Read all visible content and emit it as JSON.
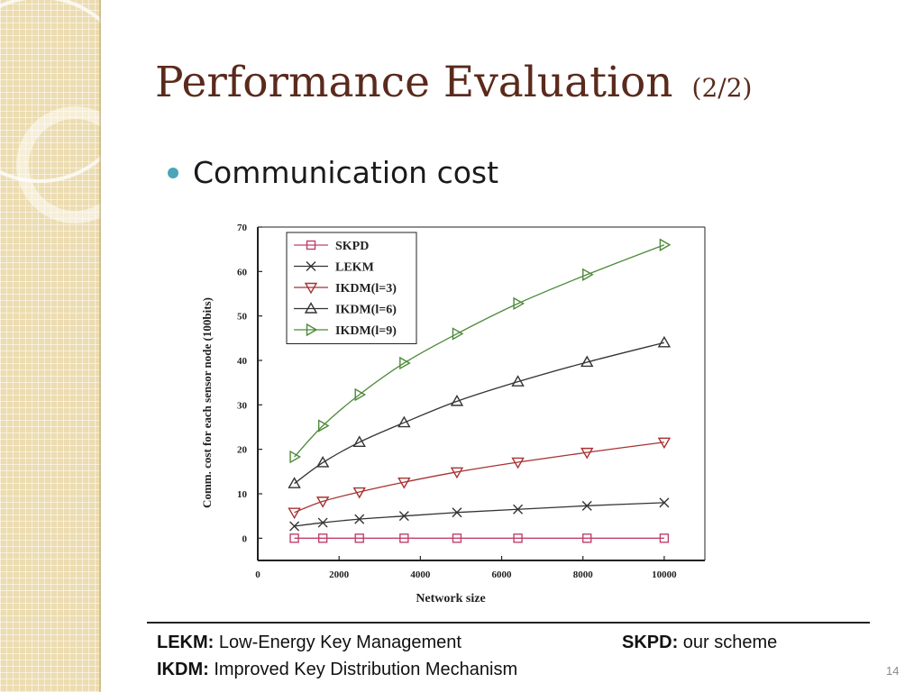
{
  "slide": {
    "title": "Performance Evaluation",
    "title_suffix": "(2/2)",
    "bullet": "Communication cost",
    "page_number": "14"
  },
  "footnotes": {
    "lekm_term": "LEKM:",
    "lekm_desc": "Low-Energy Key Management",
    "skpd_term": "SKPD:",
    "skpd_desc": "our scheme",
    "ikdm_term": "IKDM:",
    "ikdm_desc": "Improved Key Distribution Mechanism"
  },
  "chart_data": {
    "type": "line",
    "xlabel": "Network size",
    "ylabel": "Comm. cost for each sensor node (100bits)",
    "xlim": [
      0,
      11000
    ],
    "ylim": [
      -5,
      70
    ],
    "xticks": [
      0,
      2000,
      4000,
      6000,
      8000,
      10000
    ],
    "yticks": [
      0,
      10,
      20,
      30,
      40,
      50,
      60,
      70
    ],
    "legend_position": "top-left",
    "grid": false,
    "x": [
      900,
      1600,
      2500,
      3600,
      4900,
      6400,
      8100,
      10000
    ],
    "series": [
      {
        "name": "SKPD",
        "marker": "square",
        "color": "#c0406a",
        "values": [
          0,
          0,
          0,
          0,
          0,
          0,
          0,
          0
        ]
      },
      {
        "name": "LEKM",
        "marker": "x",
        "color": "#333333",
        "values": [
          2.7,
          3.5,
          4.3,
          5.0,
          5.8,
          6.5,
          7.3,
          8.0
        ]
      },
      {
        "name": "IKDM(l=3)",
        "marker": "triangle-down",
        "color": "#a83232",
        "values": [
          5.8,
          8.3,
          10.4,
          12.6,
          14.9,
          17.1,
          19.3,
          21.6
        ]
      },
      {
        "name": "IKDM(l=6)",
        "marker": "triangle-up",
        "color": "#333333",
        "values": [
          12.3,
          17.0,
          21.6,
          26.0,
          30.8,
          35.2,
          39.6,
          44.0
        ]
      },
      {
        "name": "IKDM(l=9)",
        "marker": "triangle-right",
        "color": "#4e8a3a",
        "values": [
          18.3,
          25.3,
          32.3,
          39.4,
          46.0,
          52.8,
          59.3,
          66.0
        ]
      }
    ]
  }
}
